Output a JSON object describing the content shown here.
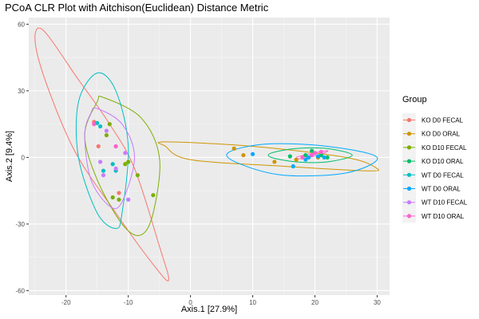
{
  "chart_data": {
    "type": "scatter",
    "title": "PCoA CLR Plot with Aitchison(Euclidean) Distance Metric",
    "xlabel": "Axis.1   [27.9%]",
    "ylabel": "Axis.2   [9.4%]",
    "xlim": [
      -26,
      32
    ],
    "ylim": [
      -62,
      63
    ],
    "xticks": [
      -20,
      -10,
      0,
      10,
      20,
      30
    ],
    "yticks": [
      -60,
      -30,
      0,
      30,
      60
    ],
    "grid": true,
    "legend_title": "Group",
    "legend_position": "right",
    "ellipses": true,
    "series": [
      {
        "name": "KO D0 FECAL",
        "color": "#F8766D",
        "points": [
          [
            -15.5,
            16
          ],
          [
            -14.8,
            5
          ],
          [
            -11.5,
            -16
          ]
        ],
        "ellipse": [
          [
            -24,
            58
          ],
          [
            -18,
            35
          ],
          [
            -13,
            15
          ],
          [
            -9,
            -5
          ],
          [
            -5,
            -40
          ],
          [
            -3.5,
            -55
          ],
          [
            -5.5,
            -50
          ],
          [
            -12,
            -25
          ],
          [
            -19,
            5
          ],
          [
            -24.5,
            45
          ]
        ]
      },
      {
        "name": "KO D0 ORAL",
        "color": "#CD9600",
        "points": [
          [
            7,
            4
          ],
          [
            8.5,
            1
          ],
          [
            13.5,
            -2
          ],
          [
            17,
            -1
          ],
          [
            20.5,
            0
          ]
        ],
        "ellipse": [
          [
            -4,
            7
          ],
          [
            10,
            5
          ],
          [
            25,
            0
          ],
          [
            30,
            -5
          ],
          [
            28,
            -6
          ],
          [
            15,
            -4
          ],
          [
            0,
            -1
          ],
          [
            -4,
            5
          ]
        ]
      },
      {
        "name": "KO D10 FECAL",
        "color": "#7CAE00",
        "points": [
          [
            -13,
            15
          ],
          [
            -13.5,
            10
          ],
          [
            -10,
            -2
          ],
          [
            -10.5,
            -3
          ],
          [
            -8.5,
            -8
          ],
          [
            -6,
            -17
          ],
          [
            -12.5,
            -18
          ],
          [
            -11.5,
            -19
          ]
        ],
        "ellipse": [
          [
            -14,
            27
          ],
          [
            -8,
            18
          ],
          [
            -5,
            0
          ],
          [
            -6,
            -25
          ],
          [
            -8,
            -35
          ],
          [
            -11,
            -30
          ],
          [
            -15,
            -10
          ],
          [
            -17,
            10
          ],
          [
            -15,
            25
          ]
        ]
      },
      {
        "name": "KO D10 ORAL",
        "color": "#00BE67",
        "points": [
          [
            16,
            0.5
          ],
          [
            18.5,
            1
          ],
          [
            19.5,
            3
          ],
          [
            21,
            1
          ],
          [
            22,
            0
          ]
        ],
        "ellipse": [
          [
            13,
            2
          ],
          [
            17,
            4
          ],
          [
            22,
            4
          ],
          [
            26,
            1
          ],
          [
            22,
            -2
          ],
          [
            17,
            -2
          ],
          [
            13,
            0
          ]
        ]
      },
      {
        "name": "WT D0 FECAL",
        "color": "#00BFC4",
        "points": [
          [
            -15,
            15.5
          ],
          [
            -14.5,
            14
          ],
          [
            -14,
            -6
          ],
          [
            -12.5,
            -3
          ],
          [
            -12,
            -6
          ]
        ],
        "ellipse": [
          [
            -15,
            38
          ],
          [
            -12,
            30
          ],
          [
            -10,
            5
          ],
          [
            -11,
            -25
          ],
          [
            -12,
            -32
          ],
          [
            -15,
            -25
          ],
          [
            -18,
            0
          ],
          [
            -18,
            25
          ]
        ]
      },
      {
        "name": "WT D0 ORAL",
        "color": "#00A9FF",
        "points": [
          [
            10,
            1.5
          ],
          [
            16.5,
            -4
          ],
          [
            19,
            0
          ],
          [
            20.5,
            0.5
          ],
          [
            21.5,
            0
          ],
          [
            18.5,
            -1
          ]
        ],
        "ellipse": [
          [
            6,
            2
          ],
          [
            12,
            6
          ],
          [
            22,
            5
          ],
          [
            30,
            0
          ],
          [
            25,
            -7
          ],
          [
            15,
            -8
          ],
          [
            8,
            -3
          ]
        ]
      },
      {
        "name": "WT D10 FECAL",
        "color": "#C77CFF",
        "points": [
          [
            -13.5,
            12
          ],
          [
            -12,
            5
          ],
          [
            -10.5,
            2
          ],
          [
            -14.5,
            -2
          ],
          [
            -12,
            -5
          ],
          [
            -14,
            -8
          ],
          [
            -10,
            -19
          ]
        ],
        "ellipse": [
          [
            -15,
            22
          ],
          [
            -11,
            15
          ],
          [
            -9,
            0
          ],
          [
            -11,
            -20
          ],
          [
            -13,
            -22
          ],
          [
            -16,
            -10
          ],
          [
            -17,
            10
          ],
          [
            -16,
            20
          ]
        ]
      },
      {
        "name": "WT D10 ORAL",
        "color": "#FF61CC",
        "points": [
          [
            -15.5,
            15
          ],
          [
            -12,
            5
          ],
          [
            18,
            0
          ],
          [
            19.5,
            1
          ],
          [
            20,
            2
          ],
          [
            21,
            2.5
          ]
        ],
        "ellipse": [
          [
            17,
            0
          ],
          [
            19,
            1.5
          ],
          [
            22,
            3
          ],
          [
            21,
            1.5
          ],
          [
            18,
            -0.5
          ]
        ]
      }
    ]
  }
}
